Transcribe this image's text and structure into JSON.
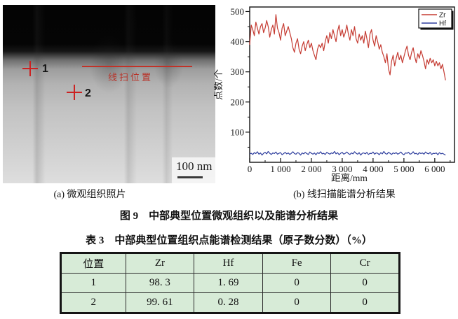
{
  "figure": {
    "panel_a": {
      "caption": "(a) 微观组织照片",
      "markers": [
        {
          "label": "1"
        },
        {
          "label": "2"
        }
      ],
      "scan_line_label": "线扫位置",
      "scale_bar_label": "100 nm"
    },
    "panel_b": {
      "caption": "(b) 线扫描能谱分析结果"
    },
    "figure_caption": "图 9　中部典型位置微观组织以及能谱分析结果"
  },
  "chart_data": {
    "type": "line",
    "title": "",
    "xlabel": "距离/mm",
    "ylabel": "点数/个",
    "xlim": [
      0,
      6640
    ],
    "ylim": [
      0,
      515
    ],
    "grid": false,
    "legend_position": "top-right",
    "x_ticks": [
      0,
      1000,
      2000,
      3000,
      4000,
      5000,
      6000
    ],
    "x_tick_labels": [
      "0",
      "1 000",
      "2 000",
      "3 000",
      "4 000",
      "5 000",
      "6 000"
    ],
    "x_minor_step": 500,
    "y_ticks": [
      100,
      200,
      300,
      400,
      500
    ],
    "y_minor_step": 50,
    "x_start": 0,
    "x_step": 50,
    "series": [
      {
        "name": "Zr",
        "color": "#c53b32",
        "values": [
          390,
          455,
          440,
          420,
          465,
          445,
          425,
          450,
          460,
          430,
          445,
          470,
          450,
          415,
          440,
          455,
          425,
          490,
          445,
          430,
          405,
          445,
          460,
          420,
          435,
          450,
          430,
          410,
          380,
          365,
          395,
          410,
          375,
          360,
          385,
          400,
          370,
          390,
          405,
          380,
          395,
          370,
          355,
          340,
          375,
          390,
          380,
          395,
          370,
          400,
          420,
          395,
          430,
          410,
          440,
          420,
          400,
          435,
          455,
          420,
          440,
          415,
          430,
          455,
          425,
          405,
          440,
          420,
          450,
          410,
          395,
          425,
          405,
          420,
          395,
          435,
          410,
          380,
          425,
          440,
          405,
          385,
          420,
          400,
          375,
          390,
          365,
          350,
          330,
          360,
          310,
          290,
          335,
          355,
          320,
          345,
          365,
          340,
          355,
          330,
          350,
          370,
          385,
          355,
          340,
          365,
          380,
          350,
          330,
          360,
          345,
          370,
          355,
          335,
          310,
          340,
          325,
          345,
          330,
          340,
          320,
          335,
          320,
          330,
          310,
          325,
          300,
          272
        ]
      },
      {
        "name": "Hf",
        "color": "#2f3f9e",
        "values": [
          28,
          30,
          26,
          32,
          29,
          35,
          27,
          31,
          24,
          30,
          33,
          28,
          36,
          30,
          26,
          31,
          29,
          34,
          27,
          30,
          32,
          25,
          29,
          33,
          28,
          31,
          26,
          30,
          35,
          29,
          27,
          32,
          30,
          24,
          31,
          28,
          33,
          29,
          26,
          34,
          30,
          27,
          31,
          25,
          32,
          29,
          35,
          28,
          30,
          26,
          33,
          30,
          27,
          31,
          29,
          36,
          28,
          32,
          25,
          30,
          33,
          27,
          30,
          34,
          29,
          26,
          31,
          28,
          35,
          30,
          27,
          32,
          24,
          30,
          31,
          28,
          33,
          26,
          30,
          29,
          34,
          27,
          31,
          30,
          25,
          32,
          28,
          36,
          29,
          27,
          33,
          30,
          26,
          31,
          29,
          32,
          27,
          30,
          34,
          28,
          25,
          31,
          30,
          33,
          27,
          29,
          35,
          28,
          30,
          26,
          32,
          29,
          31,
          27,
          34,
          30,
          28,
          33,
          26,
          30,
          29,
          31,
          25,
          32,
          28,
          30,
          27,
          24
        ]
      }
    ]
  },
  "table": {
    "caption": "表 3　中部典型位置组织点能谱检测结果（原子数分数）（%）",
    "headers": [
      "位置",
      "Zr",
      "Hf",
      "Fe",
      "Cr"
    ],
    "rows": [
      [
        "1",
        "98. 3",
        "1. 69",
        "0",
        "0"
      ],
      [
        "2",
        "99. 61",
        "0. 28",
        "0",
        "0"
      ]
    ]
  },
  "colors": {
    "zr_line": "#c53b32",
    "hf_line": "#2f3f9e",
    "marker_red": "#cc2222",
    "table_bg": "#d7ebd7"
  }
}
